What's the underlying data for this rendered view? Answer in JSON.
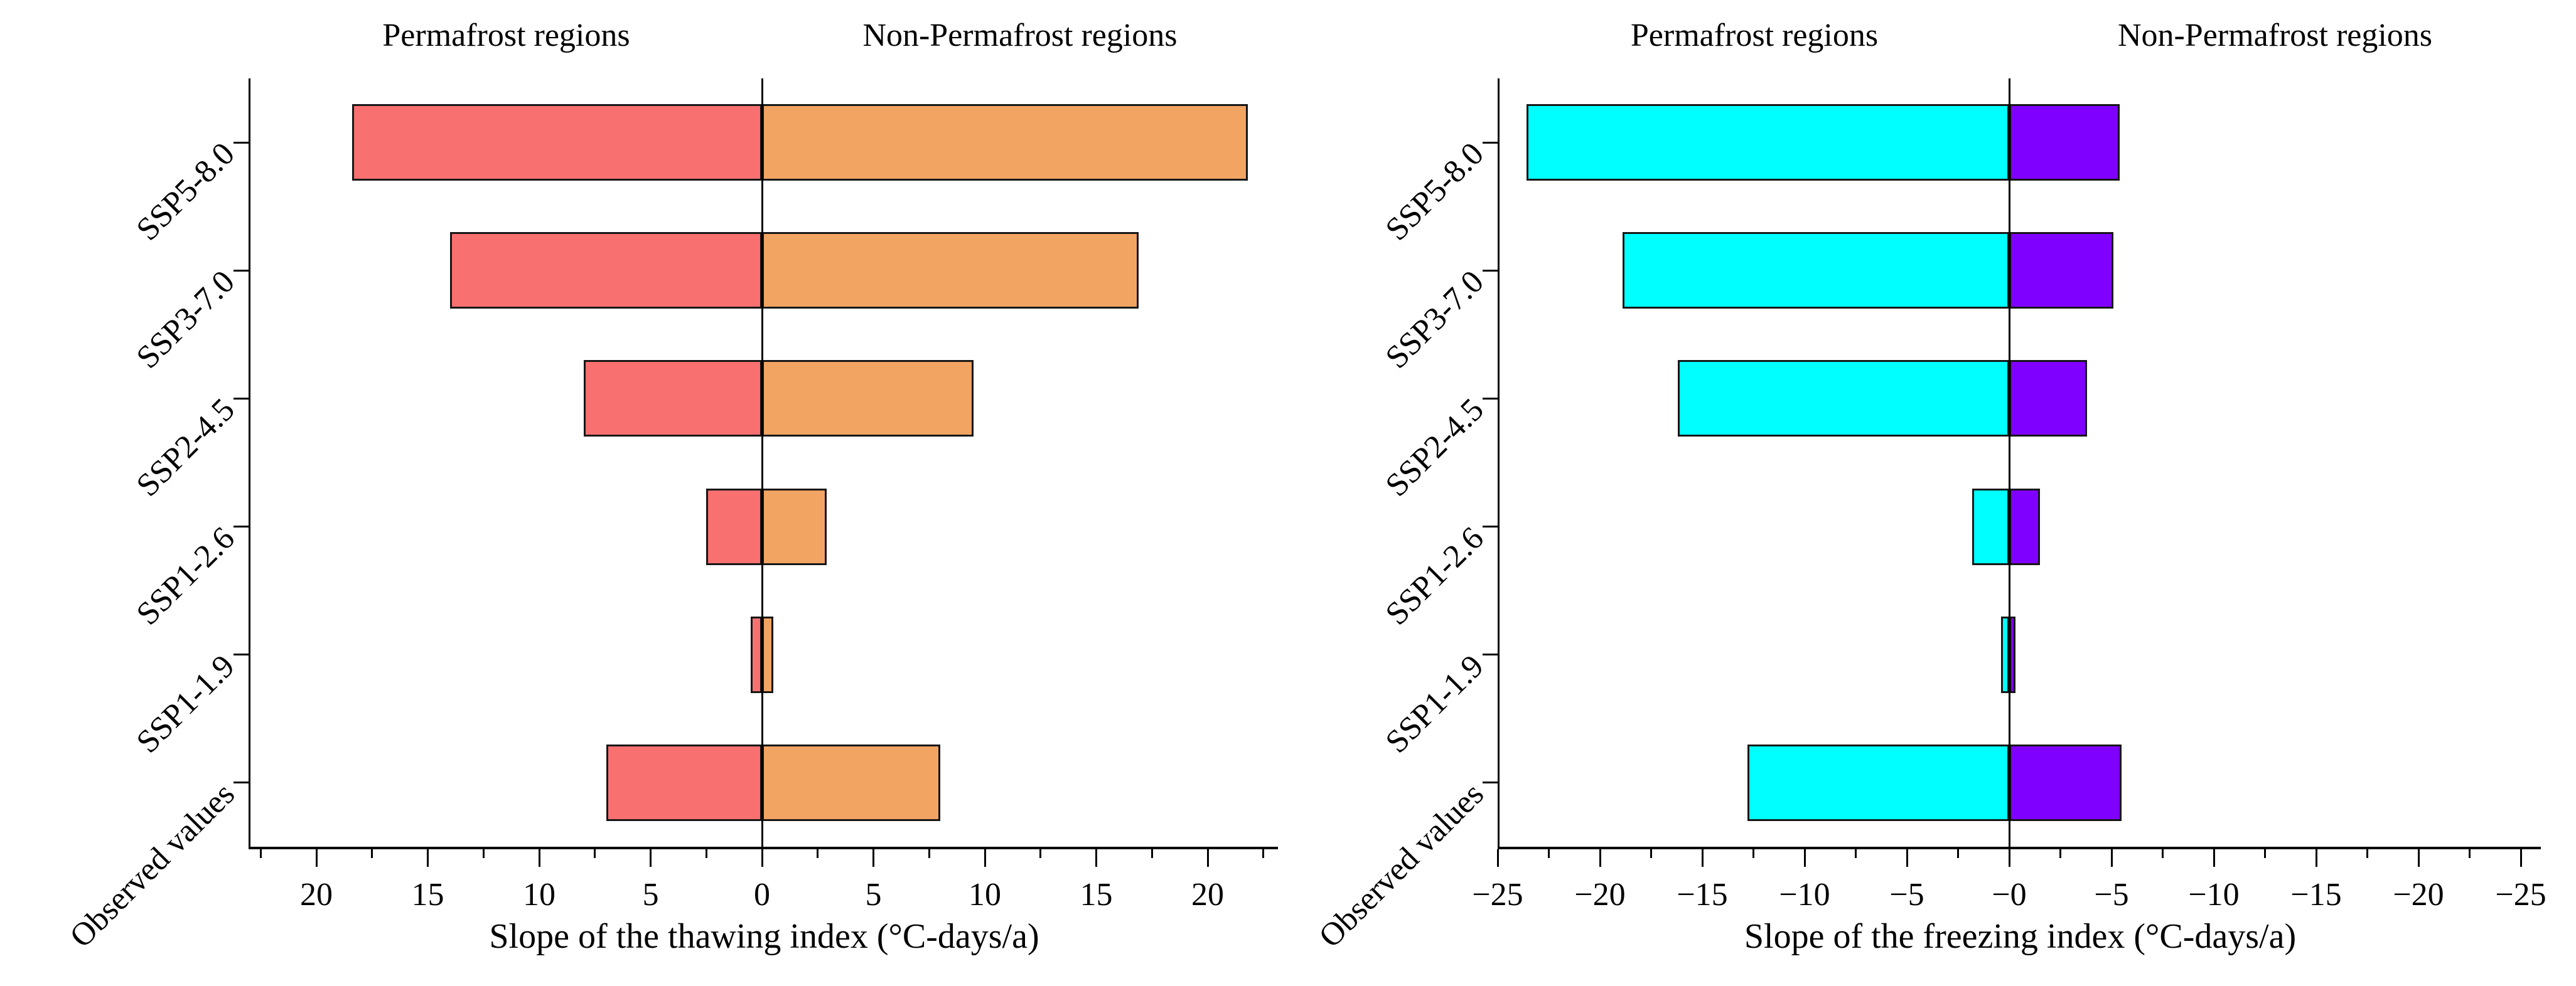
{
  "figure": {
    "background": "#ffffff",
    "text_color": "#000000",
    "bar_border_color": "#161616"
  },
  "chart_data": [
    {
      "type": "bar",
      "orientation": "horizontal-diverging",
      "left_title": "Permafrost regions",
      "right_title": "Non-Permafrost regions",
      "xlabel": "Slope of the thawing index (°C-days/a)",
      "categories": [
        "SSP5-8.0",
        "SSP3-7.0",
        "SSP2-4.5",
        "SSP1-2.6",
        "SSP1-1.9",
        "Observed values"
      ],
      "series": [
        {
          "name": "Permafrost regions",
          "side": "left",
          "color": "#F87070",
          "values": [
            18.4,
            14.0,
            8.0,
            2.5,
            0.5,
            7.0
          ]
        },
        {
          "name": "Non-Permafrost regions",
          "side": "right",
          "color": "#F2A463",
          "values": [
            21.8,
            16.9,
            9.5,
            2.9,
            0.5,
            8.0
          ]
        }
      ],
      "axis": {
        "half_range_left": 23,
        "half_range_right": 23.2,
        "major_tick_values": [
          -20,
          -15,
          -10,
          -5,
          0,
          5,
          10,
          15,
          20
        ],
        "major_tick_labels": [
          "20",
          "15",
          "10",
          "5",
          "0",
          "5",
          "10",
          "15",
          "20"
        ],
        "minor_tick_values": [
          -22.5,
          -17.5,
          -12.5,
          -7.5,
          -2.5,
          2.5,
          7.5,
          12.5,
          17.5,
          22.5
        ],
        "grid": false
      }
    },
    {
      "type": "bar",
      "orientation": "horizontal-diverging",
      "left_title": "Permafrost regions",
      "right_title": "Non-Permafrost regions",
      "xlabel": "Slope of the freezing index (°C-days/a)",
      "categories": [
        "SSP5-8.0",
        "SSP3-7.0",
        "SSP2-4.5",
        "SSP1-2.6",
        "SSP1-1.9",
        "Observed values"
      ],
      "series": [
        {
          "name": "Permafrost regions",
          "side": "left",
          "color": "#00FFFF",
          "values": [
            -23.6,
            -18.9,
            -16.2,
            -1.8,
            -0.4,
            -12.8
          ]
        },
        {
          "name": "Non-Permafrost regions",
          "side": "right",
          "color": "#7F00FF",
          "values": [
            -5.4,
            -5.1,
            -3.8,
            -1.5,
            -0.3,
            -5.5
          ]
        }
      ],
      "axis": {
        "half_range_left": 25,
        "half_range_right": 26,
        "major_tick_values": [
          -25,
          -20,
          -15,
          -10,
          -5,
          0,
          5,
          10,
          15,
          20,
          25
        ],
        "major_tick_labels": [
          "−25",
          "−20",
          "−15",
          "−10",
          "−5",
          "−0",
          "−5",
          "−10",
          "−15",
          "−20",
          "−25"
        ],
        "minor_tick_values": [
          -22.5,
          -17.5,
          -12.5,
          -7.5,
          -2.5,
          2.5,
          7.5,
          12.5,
          17.5,
          22.5
        ],
        "grid": false
      }
    }
  ]
}
